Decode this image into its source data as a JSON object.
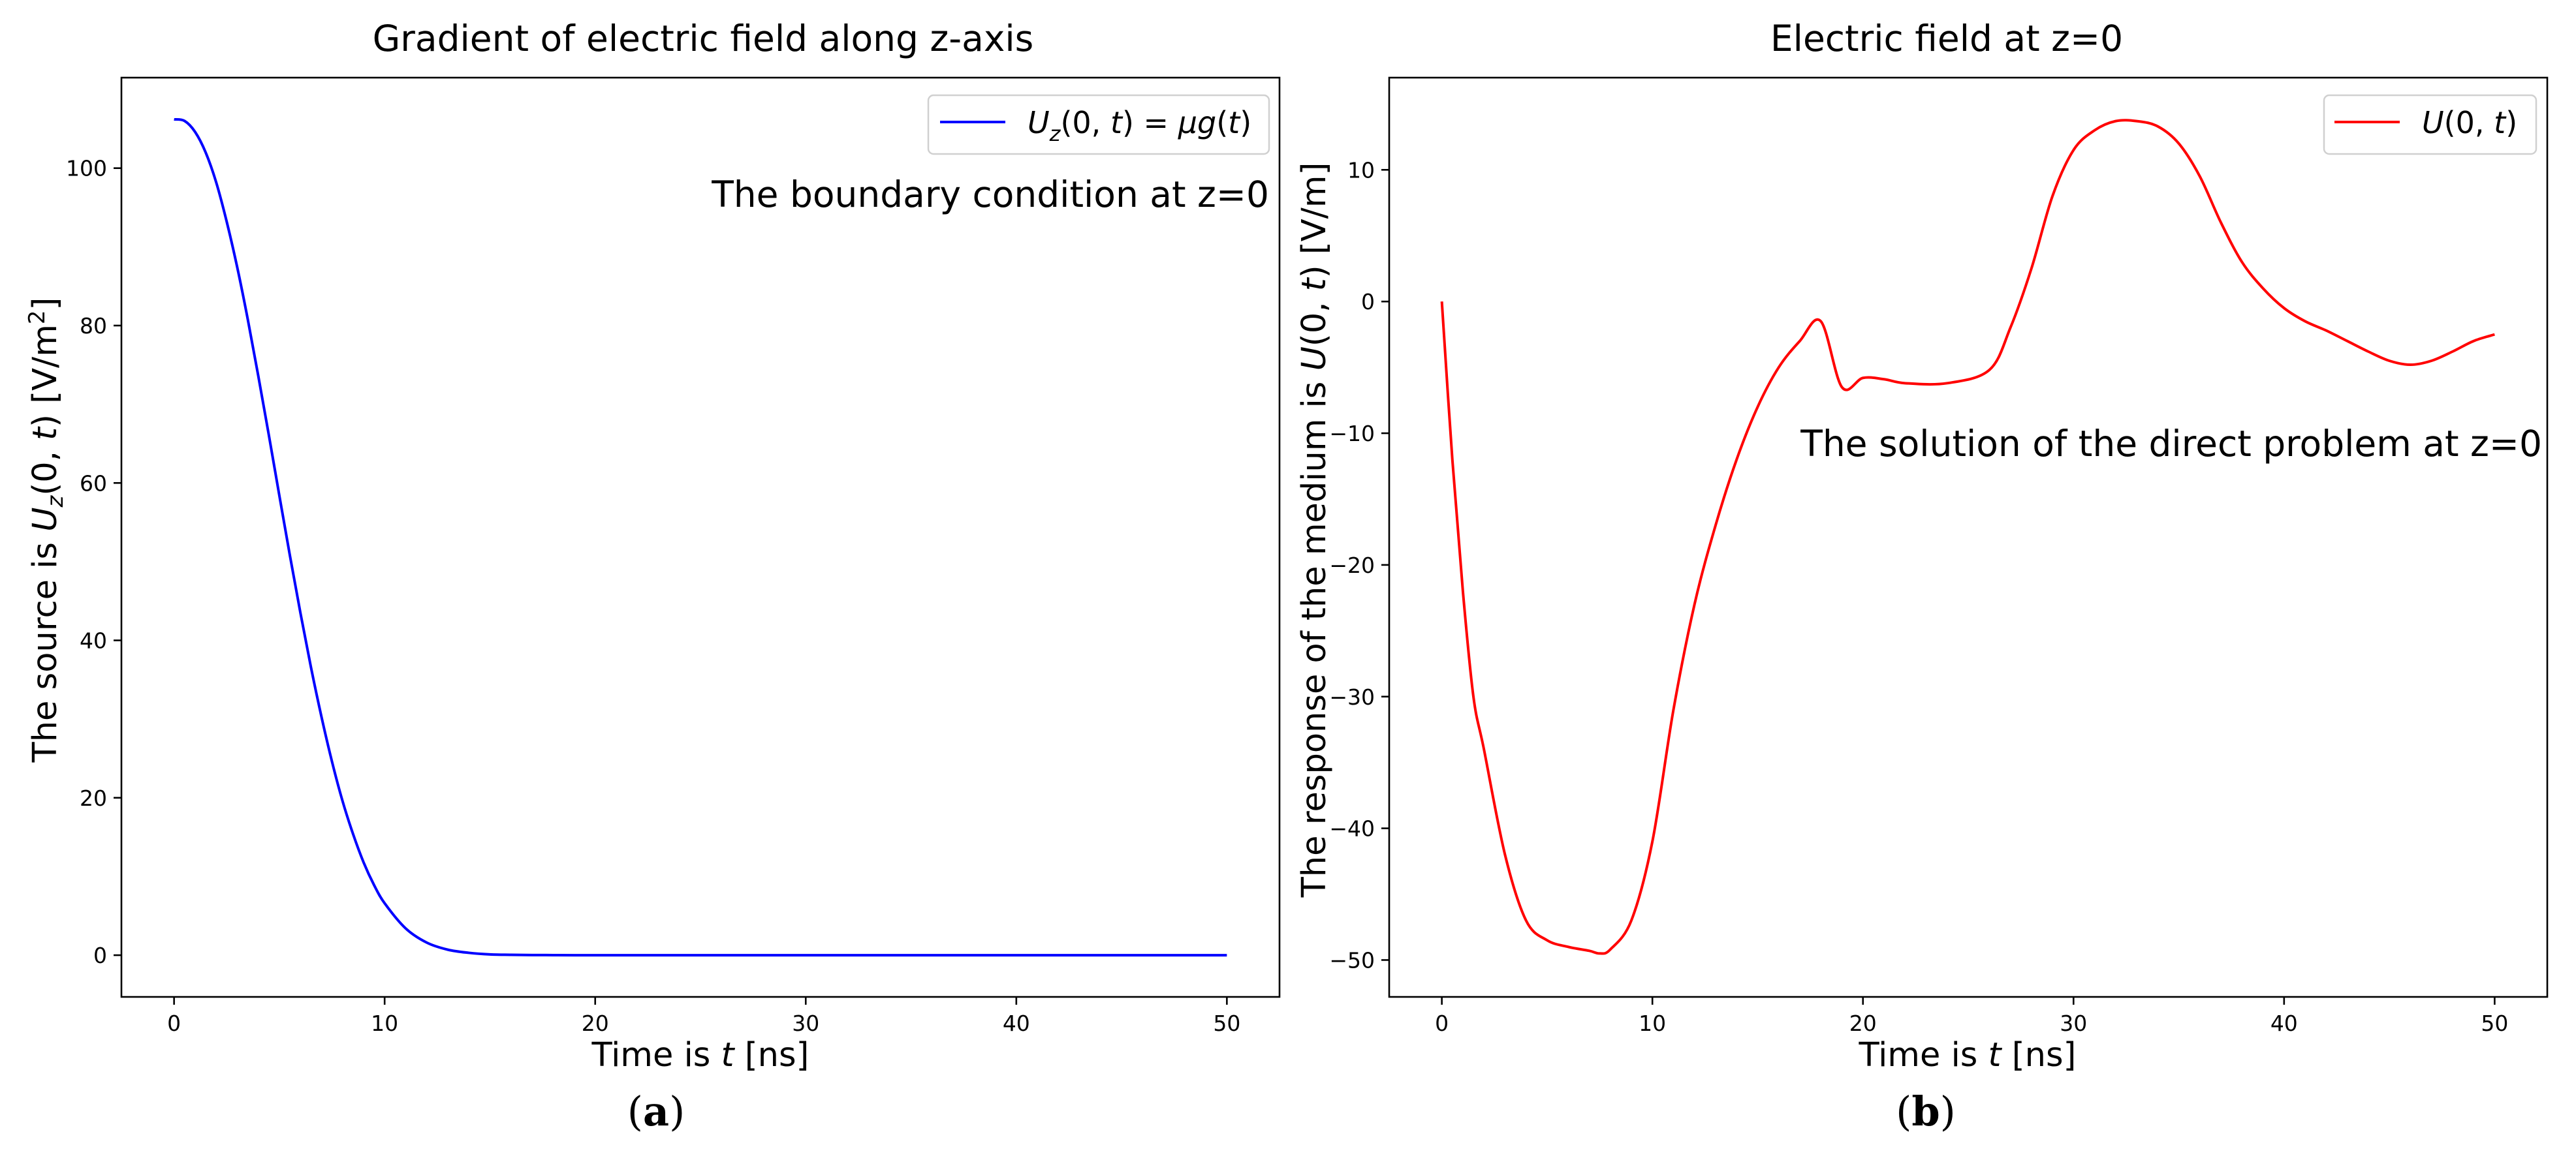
{
  "chart_data": [
    {
      "type": "line",
      "panel_label": "a",
      "title": "Gradient of electric field along z-axis",
      "xlabel": "Time is t [ns]",
      "ylabel": "The source is U_z(0,t) [V/m²]",
      "xlim": [
        -2.5,
        52.5
      ],
      "ylim": [
        -5.3,
        111.5
      ],
      "xticks": [
        0,
        10,
        20,
        30,
        40,
        50
      ],
      "yticks": [
        0,
        20,
        40,
        60,
        80,
        100
      ],
      "legend_position": "top-right",
      "annotation": "The boundary condition at z=0",
      "series": [
        {
          "name": "U_z(0,t) = μg(t)",
          "color": "#0000ff",
          "x": [
            0,
            0.5,
            1,
            1.5,
            2,
            2.5,
            3,
            3.5,
            4,
            4.5,
            5,
            5.5,
            6,
            6.5,
            7,
            7.5,
            8,
            8.5,
            9,
            9.5,
            10,
            11,
            12,
            13,
            14,
            15,
            16,
            17,
            18,
            19,
            20,
            22,
            25,
            30,
            35,
            40,
            45,
            50
          ],
          "y": [
            106.2,
            106,
            104.6,
            102,
            98.2,
            93.2,
            87.4,
            80.8,
            73.6,
            66.1,
            58.4,
            50.8,
            43.5,
            36.6,
            30.3,
            24.6,
            19.6,
            15.4,
            11.8,
            8.9,
            6.6,
            3.4,
            1.6,
            0.7,
            0.3,
            0.1,
            0.05,
            0.02,
            0.01,
            0,
            0,
            0,
            0,
            0,
            0,
            0,
            0,
            0
          ]
        }
      ]
    },
    {
      "type": "line",
      "panel_label": "b",
      "title": "Electric field at z=0",
      "xlabel": "Time is t [ns]",
      "ylabel": "The response of the medium is U(0,t) [V/m]",
      "xlim": [
        -2.5,
        52.5
      ],
      "ylim": [
        -52.8,
        17
      ],
      "xticks": [
        0,
        10,
        20,
        30,
        40,
        50
      ],
      "yticks": [
        -50,
        -40,
        -30,
        -20,
        -10,
        0,
        10
      ],
      "legend_position": "top-right",
      "annotation": "The solution of the direct problem at z=0",
      "series": [
        {
          "name": "U(0,t)",
          "color": "#ff0000",
          "x": [
            0,
            0.5,
            1,
            1.5,
            2,
            3,
            4,
            5,
            6,
            7,
            7.5,
            8,
            9,
            10,
            11,
            12,
            13,
            14,
            15,
            16,
            17,
            18,
            19,
            20,
            21,
            22,
            24,
            26,
            27,
            28,
            29,
            30,
            31,
            32,
            33,
            34,
            35,
            36,
            37,
            38,
            39,
            40,
            41,
            42,
            43,
            44,
            45,
            46,
            47,
            48,
            49,
            50
          ],
          "y": [
            0,
            -12,
            -22,
            -30,
            -34,
            -42,
            -47,
            -48.5,
            -49,
            -49.3,
            -49.5,
            -49.2,
            -47,
            -41,
            -31,
            -23,
            -17,
            -12,
            -8,
            -5,
            -3,
            -1.5,
            -6.5,
            -5.8,
            -5.9,
            -6.2,
            -6.2,
            -5.2,
            -2,
            2.5,
            8,
            11.5,
            13,
            13.7,
            13.7,
            13.3,
            12,
            9.5,
            6,
            3,
            1,
            -0.5,
            -1.5,
            -2.2,
            -3,
            -3.8,
            -4.5,
            -4.8,
            -4.5,
            -3.8,
            -3,
            -2.5
          ]
        }
      ]
    }
  ]
}
